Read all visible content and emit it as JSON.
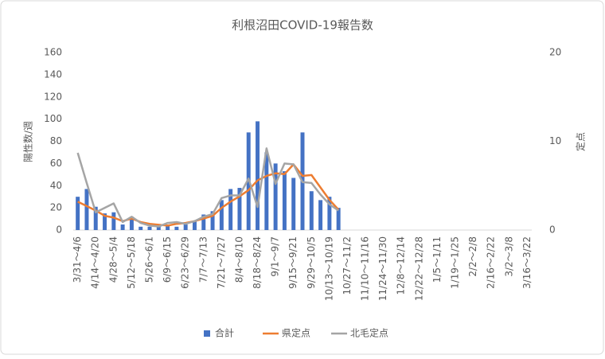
{
  "chart_data": {
    "type": "bar_line",
    "title": "利根沼田COVID-19報告数",
    "y_label": "陽性数/週",
    "y2_label": "定点",
    "categories": [
      "3/31～4/6",
      null,
      "4/14～4/20",
      null,
      "4/28～5/4",
      null,
      "5/12～5/18",
      null,
      "5/26～6/1",
      null,
      "6/9～6/15",
      null,
      "6/23～6/29",
      null,
      "7/7～7/13",
      null,
      "7/21～7/27",
      null,
      "8/4～8/10",
      null,
      "8/18～8/24",
      null,
      "9/1～9/7",
      null,
      "9/15～9/21",
      null,
      "9/29～10/5",
      null,
      "10/13～10/19",
      null,
      "10/27～11/2",
      null,
      "11/10～11/16",
      null,
      "11/24～11/30",
      null,
      "12/8～12/14",
      null,
      "12/22～12/28",
      null,
      "1/5～1/11",
      null,
      "1/19～1/25",
      null,
      "2/2～2/8",
      null,
      "2/16～2/22",
      null,
      "3/2～3/8",
      null,
      "3/16～3/22"
    ],
    "series": [
      {
        "name": "合計",
        "type": "bar",
        "color": "#4472c4",
        "values": [
          30,
          37,
          21,
          15,
          16,
          5,
          12,
          3,
          3,
          3,
          5,
          3,
          5,
          8,
          14,
          17,
          27,
          37,
          38,
          88,
          98,
          70,
          60,
          53,
          47,
          88,
          35,
          27,
          30,
          20,
          null,
          null,
          null,
          null,
          null,
          null,
          null,
          null,
          null,
          null,
          null,
          null,
          null,
          null,
          null,
          null,
          null,
          null,
          null,
          null,
          null
        ]
      },
      {
        "name": "県定点",
        "type": "line",
        "axis": "y2",
        "color": "#ed7d31",
        "values": [
          3.2,
          2.7,
          2.2,
          1.6,
          1.4,
          1.0,
          1.3,
          0.9,
          0.7,
          0.6,
          0.5,
          0.7,
          0.8,
          1.0,
          1.3,
          1.6,
          2.5,
          3.2,
          3.8,
          4.5,
          5.6,
          6.1,
          6.4,
          6.3,
          7.4,
          6.1,
          6.2,
          4.8,
          3.4,
          2.3,
          null,
          null,
          null,
          null,
          null,
          null,
          null,
          null,
          null,
          null,
          null,
          null,
          null,
          null,
          null,
          null,
          null,
          null,
          null,
          null,
          null
        ]
      },
      {
        "name": "北毛定点",
        "type": "line",
        "axis": "y2",
        "color": "#a5a5a5",
        "values": [
          8.7,
          5.3,
          2.0,
          2.5,
          3.0,
          0.9,
          1.5,
          0.8,
          0.5,
          0.4,
          0.8,
          0.9,
          0.7,
          1.0,
          1.5,
          1.8,
          3.6,
          3.9,
          3.9,
          5.8,
          2.6,
          9.2,
          5.2,
          7.5,
          7.4,
          5.4,
          5.3,
          4.0,
          2.9,
          2.2,
          null,
          null,
          null,
          null,
          null,
          null,
          null,
          null,
          null,
          null,
          null,
          null,
          null,
          null,
          null,
          null,
          null,
          null,
          null,
          null,
          null
        ]
      }
    ],
    "ylim": [
      0,
      160
    ],
    "yticks": [
      0,
      20,
      40,
      60,
      80,
      100,
      120,
      140,
      160
    ],
    "y2lim": [
      0,
      20
    ],
    "y2ticks": [
      0,
      10,
      20
    ],
    "legend": "bottom"
  }
}
